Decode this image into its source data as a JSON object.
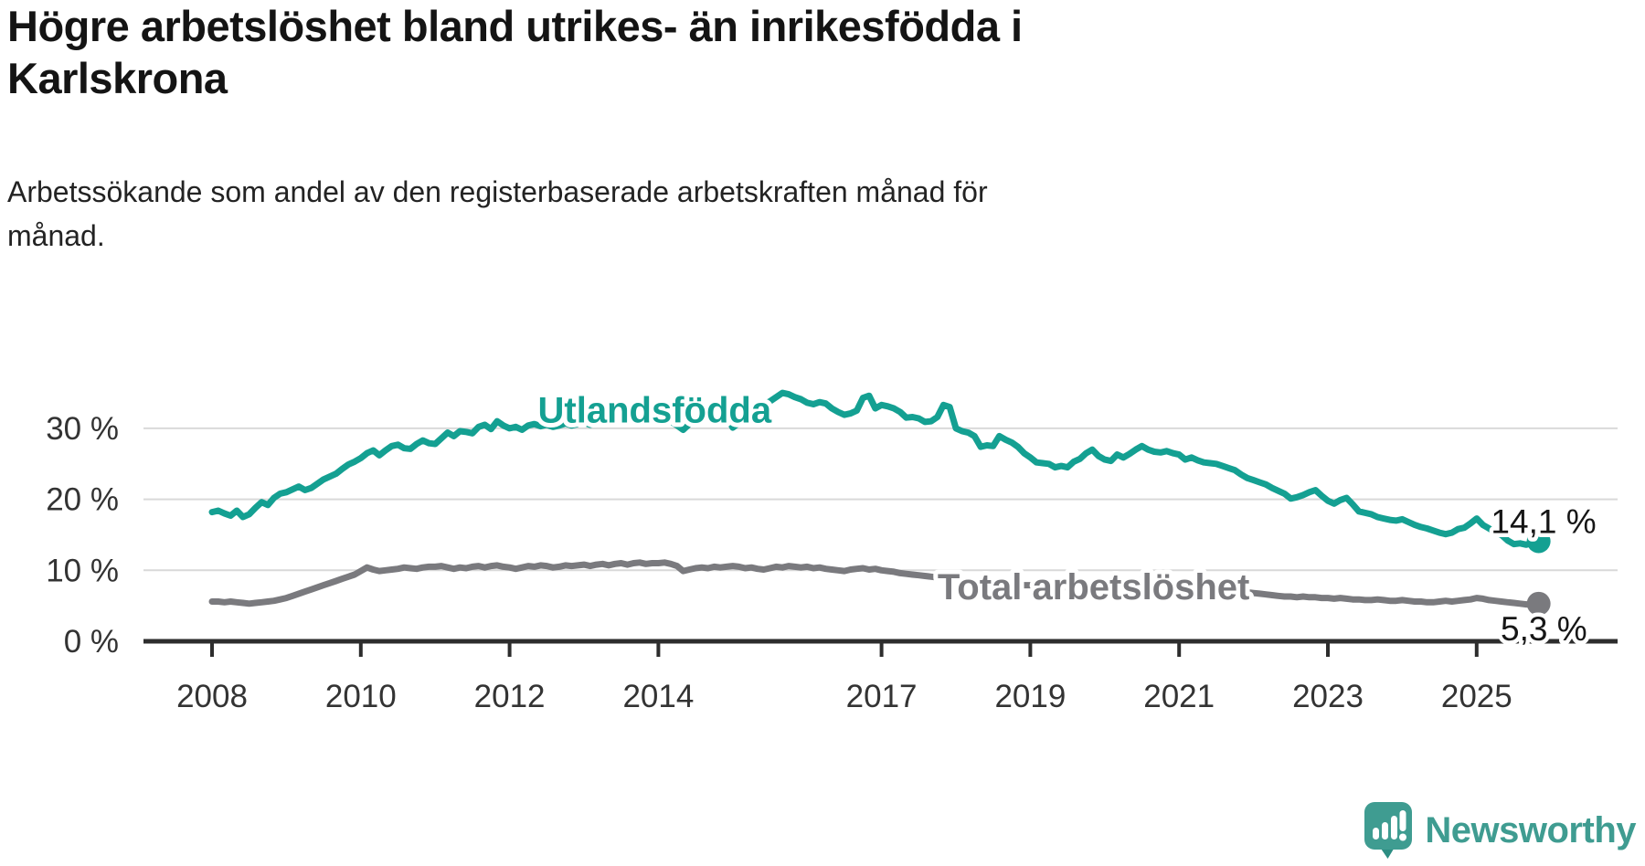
{
  "header": {},
  "footer": {
    "brand": "Newsworthy",
    "logo_icon": "newsworthy-speech-bubble-chart-icon"
  },
  "colors": {
    "accent_teal": "#14a092",
    "line_gray": "#7a7a7e",
    "grid": "#d9d9d9",
    "axis": "#2d2d2d",
    "text_dark": "#141414",
    "logo_teal": "#3f9c91",
    "logo_tail_teal": "#2c8d82"
  },
  "chart_data": {
    "type": "line",
    "title": "Högre arbetslöshet bland utrikes- än inrikesfödda i\nKarlskrona",
    "subtitle": "Arbetssökande som andel av den registerbaserade arbetskraften månad för\nmånad.",
    "unit": "%",
    "x_unit": "month",
    "x_start": 2008.0,
    "x_end": 2025.83,
    "ylim": [
      0,
      36.5
    ],
    "grid": "horizontal",
    "legend_position": "inline-labels",
    "grid_color": "#d9d9d9",
    "axis_color": "#2d2d2d",
    "x_ticks": [
      {
        "value": 2008,
        "label": "2008"
      },
      {
        "value": 2010,
        "label": "2010"
      },
      {
        "value": 2012,
        "label": "2012"
      },
      {
        "value": 2014,
        "label": "2014"
      },
      {
        "value": 2017,
        "label": "2017"
      },
      {
        "value": 2019,
        "label": "2019"
      },
      {
        "value": 2021,
        "label": "2021"
      },
      {
        "value": 2023,
        "label": "2023"
      },
      {
        "value": 2025,
        "label": "2025"
      }
    ],
    "y_ticks": [
      {
        "value": 0,
        "label": "0 %"
      },
      {
        "value": 10,
        "label": "10 %"
      },
      {
        "value": 20,
        "label": "20 %"
      },
      {
        "value": 30,
        "label": "30 %"
      }
    ],
    "series": [
      {
        "id": "total",
        "name": "Total arbetslöshet",
        "color": "#7a7a7e",
        "label": {
          "year": 2019.85,
          "value": 5.9
        },
        "end_label": {
          "text": "5,3 %",
          "dx": 53,
          "dy": 40
        },
        "end_value": 5.3,
        "values": [
          5.6,
          5.6,
          5.5,
          5.6,
          5.5,
          5.4,
          5.3,
          5.4,
          5.5,
          5.6,
          5.7,
          5.9,
          6.1,
          6.4,
          6.7,
          7.0,
          7.3,
          7.6,
          7.9,
          8.2,
          8.5,
          8.8,
          9.1,
          9.4,
          9.9,
          10.4,
          10.1,
          9.9,
          10.0,
          10.1,
          10.2,
          10.4,
          10.3,
          10.2,
          10.4,
          10.5,
          10.5,
          10.6,
          10.4,
          10.2,
          10.4,
          10.3,
          10.5,
          10.6,
          10.4,
          10.6,
          10.7,
          10.5,
          10.4,
          10.2,
          10.4,
          10.6,
          10.5,
          10.7,
          10.6,
          10.4,
          10.5,
          10.7,
          10.6,
          10.7,
          10.8,
          10.6,
          10.8,
          10.9,
          10.7,
          10.9,
          11.0,
          10.8,
          11.0,
          11.1,
          10.9,
          11.0,
          11.0,
          11.1,
          10.9,
          10.6,
          9.9,
          10.1,
          10.3,
          10.4,
          10.3,
          10.5,
          10.4,
          10.5,
          10.6,
          10.5,
          10.3,
          10.4,
          10.2,
          10.1,
          10.3,
          10.5,
          10.4,
          10.6,
          10.5,
          10.4,
          10.5,
          10.3,
          10.4,
          10.2,
          10.1,
          10.0,
          9.9,
          10.1,
          10.2,
          10.3,
          10.1,
          10.2,
          10.0,
          9.9,
          9.8,
          9.6,
          9.5,
          9.4,
          9.3,
          9.2,
          9.1,
          9.0,
          8.9,
          8.8,
          8.7,
          8.6,
          8.5,
          8.4,
          8.3,
          8.2,
          8.2,
          8.1,
          8.1,
          8.0,
          8.0,
          7.9,
          7.9,
          7.8,
          7.8,
          7.7,
          7.7,
          7.6,
          7.6,
          7.7,
          7.7,
          7.8,
          7.8,
          7.9,
          7.9,
          8.0,
          8.2,
          8.4,
          8.5,
          8.6,
          8.6,
          8.5,
          8.4,
          8.3,
          8.2,
          8.1,
          8.0,
          7.9,
          7.8,
          7.7,
          7.6,
          7.5,
          7.4,
          7.3,
          7.2,
          7.1,
          7.0,
          6.9,
          6.8,
          6.7,
          6.6,
          6.5,
          6.4,
          6.3,
          6.3,
          6.2,
          6.3,
          6.2,
          6.2,
          6.1,
          6.1,
          6.0,
          6.1,
          6.0,
          5.9,
          5.9,
          5.8,
          5.8,
          5.9,
          5.8,
          5.7,
          5.7,
          5.8,
          5.7,
          5.6,
          5.6,
          5.5,
          5.5,
          5.6,
          5.7,
          5.6,
          5.7,
          5.8,
          5.9,
          6.1,
          6.0,
          5.8,
          5.7,
          5.6,
          5.5,
          5.4,
          5.3,
          5.2,
          5.2,
          5.3
        ]
      },
      {
        "id": "utlandsfodda",
        "name": "Utlandsfödda",
        "color": "#14a092",
        "label": {
          "year": 2013.95,
          "value": 30.8
        },
        "end_label": {
          "text": "14,1 %",
          "dx": 63,
          "dy": -9
        },
        "end_value": 14.1,
        "values": [
          18.2,
          18.4,
          18.0,
          17.7,
          18.4,
          17.5,
          17.9,
          18.8,
          19.6,
          19.2,
          20.2,
          20.8,
          21.0,
          21.4,
          21.8,
          21.3,
          21.6,
          22.2,
          22.8,
          23.2,
          23.6,
          24.3,
          24.9,
          25.3,
          25.8,
          26.5,
          26.9,
          26.2,
          26.9,
          27.5,
          27.7,
          27.2,
          27.1,
          27.8,
          28.3,
          27.9,
          27.8,
          28.6,
          29.4,
          28.9,
          29.6,
          29.5,
          29.3,
          30.2,
          30.5,
          29.9,
          31.0,
          30.4,
          30.0,
          30.2,
          29.8,
          30.4,
          30.6,
          30.3,
          30.5,
          30.2,
          30.4,
          30.7,
          30.4,
          30.6,
          30.8,
          30.5,
          30.7,
          31.0,
          30.7,
          30.9,
          31.2,
          30.9,
          31.3,
          31.1,
          31.4,
          31.2,
          31.5,
          31.3,
          31.0,
          30.4,
          29.8,
          30.6,
          31.2,
          31.6,
          31.4,
          31.8,
          32.0,
          31.7,
          30.1,
          30.8,
          31.9,
          32.6,
          33.0,
          33.4,
          33.8,
          34.4,
          35.0,
          34.8,
          34.4,
          34.1,
          33.6,
          33.4,
          33.7,
          33.5,
          32.8,
          32.3,
          31.9,
          32.1,
          32.5,
          34.3,
          34.6,
          32.8,
          33.3,
          33.1,
          32.8,
          32.3,
          31.5,
          31.6,
          31.4,
          30.9,
          31.0,
          31.6,
          33.3,
          33.0,
          30.0,
          29.6,
          29.4,
          28.9,
          27.4,
          27.6,
          27.5,
          28.9,
          28.4,
          28.0,
          27.4,
          26.5,
          25.9,
          25.2,
          25.1,
          25.0,
          24.5,
          24.7,
          24.5,
          25.3,
          25.7,
          26.5,
          27.0,
          26.1,
          25.6,
          25.4,
          26.3,
          25.9,
          26.4,
          27.0,
          27.5,
          27.0,
          26.7,
          26.6,
          26.8,
          26.5,
          26.3,
          25.6,
          25.9,
          25.5,
          25.2,
          25.1,
          25.0,
          24.7,
          24.4,
          24.1,
          23.5,
          23.0,
          22.7,
          22.4,
          22.1,
          21.6,
          21.2,
          20.8,
          20.1,
          20.3,
          20.6,
          21.0,
          21.3,
          20.5,
          19.8,
          19.4,
          19.9,
          20.2,
          19.3,
          18.3,
          18.1,
          17.9,
          17.5,
          17.3,
          17.1,
          17.0,
          17.2,
          16.8,
          16.4,
          16.1,
          15.9,
          15.6,
          15.3,
          15.1,
          15.3,
          15.8,
          16.0,
          16.6,
          17.3,
          16.4,
          15.9,
          15.3,
          15.0,
          14.2,
          13.7,
          13.8,
          13.6,
          13.9,
          14.1
        ]
      }
    ]
  }
}
